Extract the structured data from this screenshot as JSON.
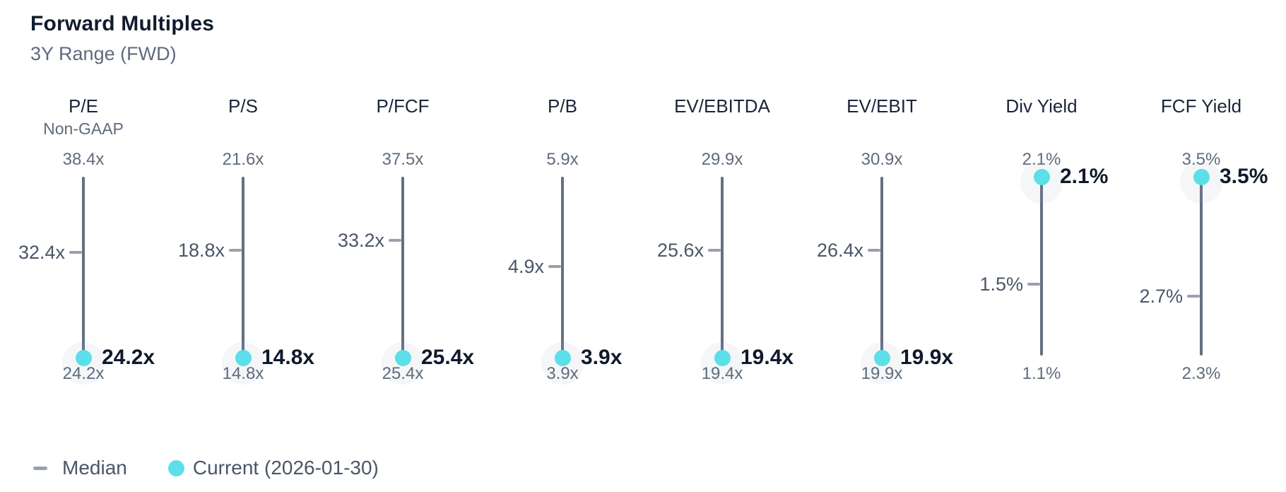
{
  "header": {
    "title": "Forward Multiples",
    "subtitle": "3Y Range (FWD)"
  },
  "legend": {
    "median_label": "Median",
    "current_label": "Current (2026-01-30)"
  },
  "colors": {
    "accent_cyan": "#5cdfe8",
    "range_line": "#657080",
    "median_tick": "#98a1af",
    "title_text": "#121b2e",
    "header_text": "#1b2537",
    "slate_text": "#5f6b7c",
    "median_text": "#4a5669",
    "current_text": "#0f1a2b"
  },
  "chart_data": {
    "type": "range-dot",
    "title": "Forward Multiples",
    "subtitle": "3Y Range (FWD)",
    "current_date": "2026-01-30",
    "legend_entries": [
      "Median",
      "Current (2026-01-30)"
    ],
    "columns": [
      {
        "label": "P/E",
        "sublabel": "Non-GAAP",
        "unit": "x",
        "max": 38.4,
        "median": 32.4,
        "min": 24.2,
        "current": 24.2,
        "max_label": "38.4x",
        "median_label": "32.4x",
        "min_label": "24.2x",
        "current_label": "24.2x"
      },
      {
        "label": "P/S",
        "sublabel": "",
        "unit": "x",
        "max": 21.6,
        "median": 18.8,
        "min": 14.8,
        "current": 14.8,
        "max_label": "21.6x",
        "median_label": "18.8x",
        "min_label": "14.8x",
        "current_label": "14.8x"
      },
      {
        "label": "P/FCF",
        "sublabel": "",
        "unit": "x",
        "max": 37.5,
        "median": 33.2,
        "min": 25.4,
        "current": 25.4,
        "max_label": "37.5x",
        "median_label": "33.2x",
        "min_label": "25.4x",
        "current_label": "25.4x"
      },
      {
        "label": "P/B",
        "sublabel": "",
        "unit": "x",
        "max": 5.9,
        "median": 4.9,
        "min": 3.9,
        "current": 3.9,
        "max_label": "5.9x",
        "median_label": "4.9x",
        "min_label": "3.9x",
        "current_label": "3.9x"
      },
      {
        "label": "EV/EBITDA",
        "sublabel": "",
        "unit": "x",
        "max": 29.9,
        "median": 25.6,
        "min": 19.4,
        "current": 19.4,
        "max_label": "29.9x",
        "median_label": "25.6x",
        "min_label": "19.4x",
        "current_label": "19.4x"
      },
      {
        "label": "EV/EBIT",
        "sublabel": "",
        "unit": "x",
        "max": 30.9,
        "median": 26.4,
        "min": 19.9,
        "current": 19.9,
        "max_label": "30.9x",
        "median_label": "26.4x",
        "min_label": "19.9x",
        "current_label": "19.9x"
      },
      {
        "label": "Div Yield",
        "sublabel": "",
        "unit": "%",
        "max": 2.1,
        "median": 1.5,
        "min": 1.1,
        "current": 2.1,
        "max_label": "2.1%",
        "median_label": "1.5%",
        "min_label": "1.1%",
        "current_label": "2.1%"
      },
      {
        "label": "FCF Yield",
        "sublabel": "",
        "unit": "%",
        "max": 3.5,
        "median": 2.7,
        "min": 2.3,
        "current": 3.5,
        "max_label": "3.5%",
        "median_label": "2.7%",
        "min_label": "2.3%",
        "current_label": "3.5%"
      }
    ]
  }
}
